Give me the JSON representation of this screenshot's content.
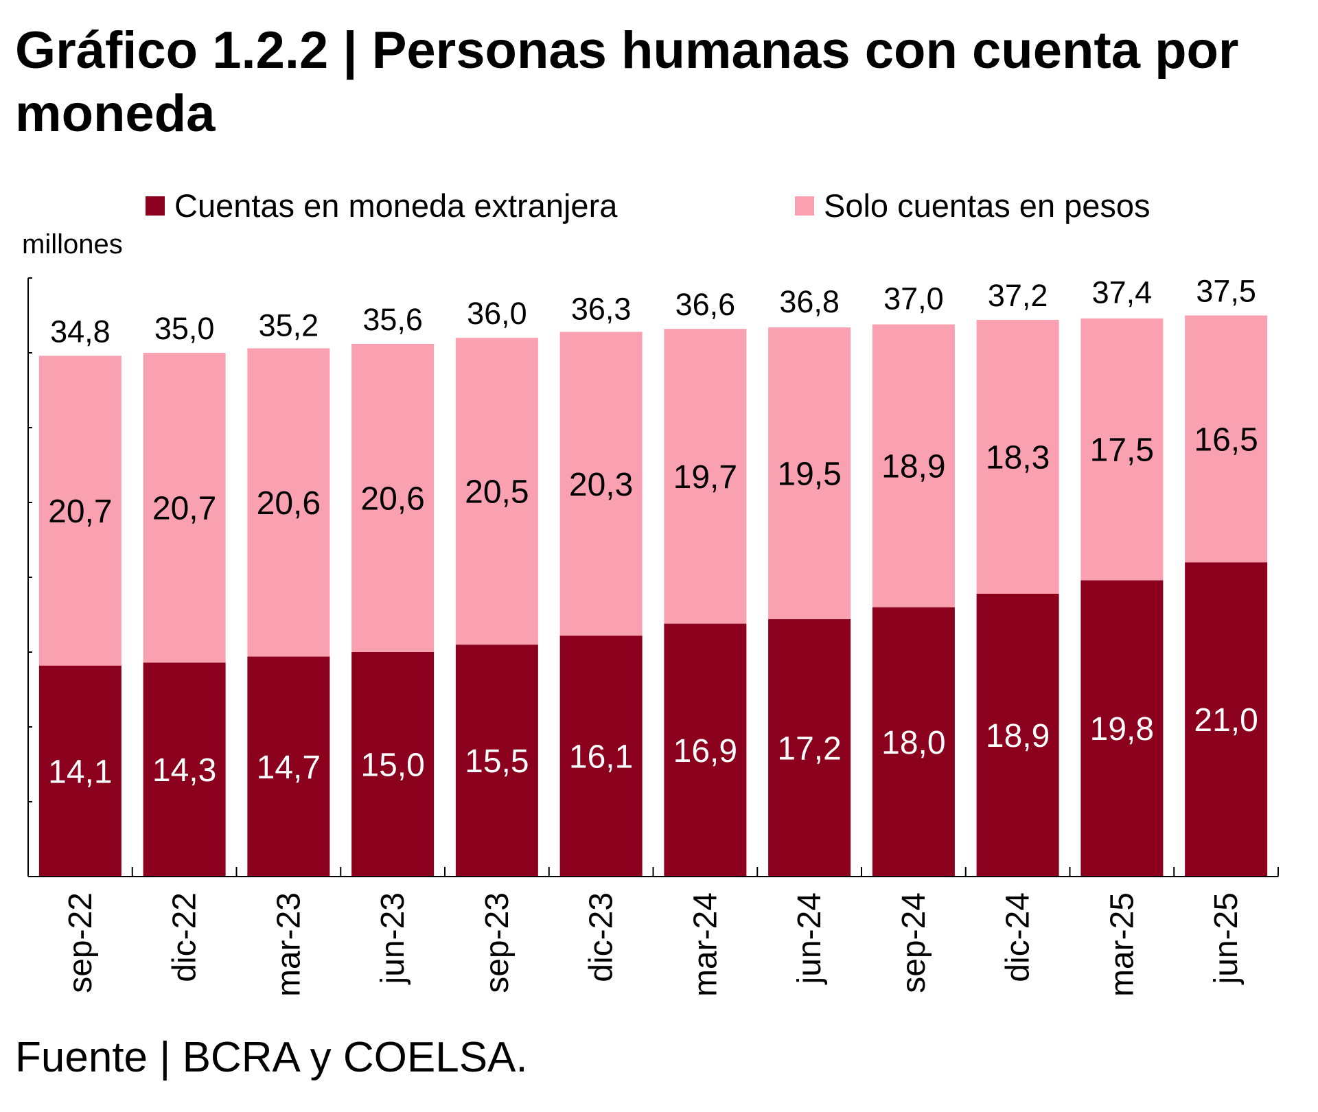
{
  "title": "Gráfico 1.2.2 | Personas humanas con cuenta por moneda",
  "source": "Fuente | BCRA y COELSA.",
  "chart_data": {
    "type": "bar",
    "stacked": true,
    "title": "Gráfico 1.2.2 | Personas humanas con cuenta por moneda",
    "ylabel": "millones",
    "xlabel": "",
    "ylim": [
      0,
      40
    ],
    "ytick_step": 5,
    "ytick_labels_shown": false,
    "grid": false,
    "legend_position": "top",
    "categories": [
      "sep-22",
      "dic-22",
      "mar-23",
      "jun-23",
      "sep-23",
      "dic-23",
      "mar-24",
      "jun-24",
      "sep-24",
      "dic-24",
      "mar-25",
      "jun-25"
    ],
    "series": [
      {
        "name": "Cuentas en moneda extranjera",
        "color": "#8B001C",
        "label_color": "#FFFFFF",
        "values": [
          14.1,
          14.3,
          14.7,
          15.0,
          15.5,
          16.1,
          16.9,
          17.2,
          18.0,
          18.9,
          19.8,
          21.0
        ]
      },
      {
        "name": "Solo cuentas en pesos",
        "color": "#F9A1B0",
        "label_color": "#000000",
        "values": [
          20.7,
          20.7,
          20.6,
          20.6,
          20.5,
          20.3,
          19.7,
          19.5,
          18.9,
          18.3,
          17.5,
          16.5
        ]
      }
    ],
    "totals": [
      34.8,
      35.0,
      35.2,
      35.6,
      36.0,
      36.3,
      36.6,
      36.8,
      37.0,
      37.2,
      37.4,
      37.5
    ],
    "decimal_separator": ","
  }
}
